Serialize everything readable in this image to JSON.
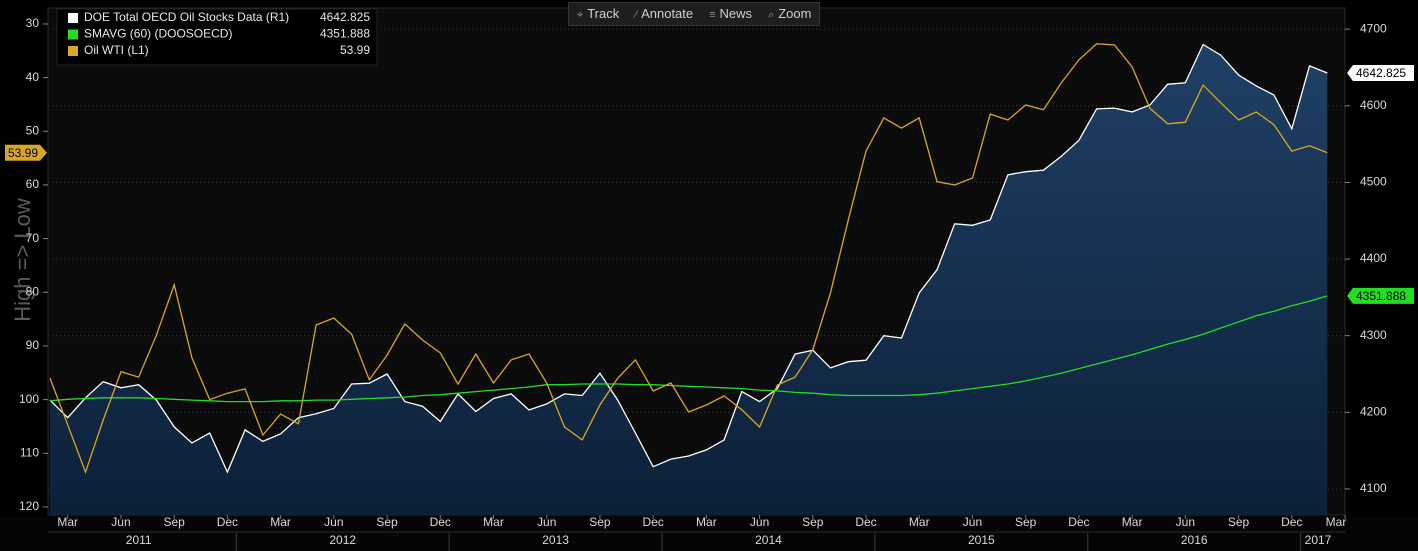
{
  "toolbar": [
    "Track",
    "Annotate",
    "News",
    "Zoom"
  ],
  "chart_data": {
    "type": "line",
    "ylabel": "High => Low",
    "x": [
      "2011-02",
      "2011-03",
      "2011-04",
      "2011-05",
      "2011-06",
      "2011-07",
      "2011-08",
      "2011-09",
      "2011-10",
      "2011-11",
      "2011-12",
      "2012-01",
      "2012-02",
      "2012-03",
      "2012-04",
      "2012-05",
      "2012-06",
      "2012-07",
      "2012-08",
      "2012-09",
      "2012-10",
      "2012-11",
      "2012-12",
      "2013-01",
      "2013-02",
      "2013-03",
      "2013-04",
      "2013-05",
      "2013-06",
      "2013-07",
      "2013-08",
      "2013-09",
      "2013-10",
      "2013-11",
      "2013-12",
      "2014-01",
      "2014-02",
      "2014-03",
      "2014-04",
      "2014-05",
      "2014-06",
      "2014-07",
      "2014-08",
      "2014-09",
      "2014-10",
      "2014-11",
      "2014-12",
      "2015-01",
      "2015-02",
      "2015-03",
      "2015-04",
      "2015-05",
      "2015-06",
      "2015-07",
      "2015-08",
      "2015-09",
      "2015-10",
      "2015-11",
      "2015-12",
      "2016-01",
      "2016-02",
      "2016-03",
      "2016-04",
      "2016-05",
      "2016-06",
      "2016-07",
      "2016-08",
      "2016-09",
      "2016-10",
      "2016-11",
      "2016-12",
      "2017-01",
      "2017-02"
    ],
    "xlim": [
      "2011-02",
      "2017-03"
    ],
    "xticks": [
      {
        "value": "2011-03",
        "label": "Mar"
      },
      {
        "value": "2011-06",
        "label": "Jun"
      },
      {
        "value": "2011-09",
        "label": "Sep"
      },
      {
        "value": "2011-12",
        "label": "Dec"
      },
      {
        "value": "2012-03",
        "label": "Mar"
      },
      {
        "value": "2012-06",
        "label": "Jun"
      },
      {
        "value": "2012-09",
        "label": "Sep"
      },
      {
        "value": "2012-12",
        "label": "Dec"
      },
      {
        "value": "2013-03",
        "label": "Mar"
      },
      {
        "value": "2013-06",
        "label": "Jun"
      },
      {
        "value": "2013-09",
        "label": "Sep"
      },
      {
        "value": "2013-12",
        "label": "Dec"
      },
      {
        "value": "2014-03",
        "label": "Mar"
      },
      {
        "value": "2014-06",
        "label": "Jun"
      },
      {
        "value": "2014-09",
        "label": "Sep"
      },
      {
        "value": "2014-12",
        "label": "Dec"
      },
      {
        "value": "2015-03",
        "label": "Mar"
      },
      {
        "value": "2015-06",
        "label": "Jun"
      },
      {
        "value": "2015-09",
        "label": "Sep"
      },
      {
        "value": "2015-12",
        "label": "Dec"
      },
      {
        "value": "2016-03",
        "label": "Mar"
      },
      {
        "value": "2016-06",
        "label": "Jun"
      },
      {
        "value": "2016-09",
        "label": "Sep"
      },
      {
        "value": "2016-12",
        "label": "Dec"
      },
      {
        "value": "2017-03",
        "label": "Mar"
      }
    ],
    "x_groups": [
      2011,
      2012,
      2013,
      2014,
      2015,
      2016,
      2017
    ],
    "ylim": [
      27.4,
      121.5
    ],
    "y_inverted": true,
    "yticks": [
      30,
      40,
      50,
      60,
      70,
      80,
      90,
      100,
      110,
      120
    ],
    "y2lim": [
      4066,
      4725
    ],
    "y2ticks": [
      4100,
      4200,
      4300,
      4400,
      4500,
      4600,
      4700
    ],
    "grid": true,
    "legend": "top-left",
    "series": [
      {
        "name": "DOE Total OECD Oil Stocks Data (R1)",
        "color": "#ffffff",
        "axis": "y2",
        "area": true,
        "values": [
          4216,
          4193,
          4219,
          4240,
          4232,
          4236,
          4216,
          4181,
          4160,
          4173,
          4122,
          4177,
          4162,
          4172,
          4193,
          4198,
          4205,
          4237,
          4238,
          4250,
          4214,
          4208,
          4188,
          4224,
          4201,
          4218,
          4224,
          4203,
          4211,
          4224,
          4222,
          4251,
          4216,
          4173,
          4129,
          4139,
          4143,
          4151,
          4164,
          4227,
          4214,
          4231,
          4276,
          4281,
          4258,
          4266,
          4268,
          4300,
          4297,
          4356,
          4386,
          4446,
          4444,
          4451,
          4510,
          4514,
          4516,
          4534,
          4555,
          4596,
          4597,
          4592,
          4601,
          4628,
          4630,
          4680,
          4666,
          4640,
          4626,
          4614,
          4570,
          4652,
          4642.825
        ]
      },
      {
        "name": "SMAVG (60) (DOOSOECD)",
        "color": "#22dd22",
        "axis": "y2",
        "values": [
          4215,
          4217,
          4218,
          4219,
          4219,
          4219,
          4218,
          4217,
          4216,
          4215,
          4214,
          4214,
          4214,
          4215,
          4215,
          4216,
          4216,
          4217,
          4218,
          4219,
          4220,
          4222,
          4223,
          4225,
          4227,
          4229,
          4231,
          4233,
          4236,
          4236,
          4237,
          4237,
          4237,
          4236,
          4236,
          4235,
          4234,
          4233,
          4232,
          4231,
          4229,
          4228,
          4226,
          4225,
          4223,
          4222,
          4222,
          4222,
          4222,
          4223,
          4225,
          4228,
          4231,
          4234,
          4237,
          4241,
          4246,
          4251,
          4257,
          4263,
          4269,
          4275,
          4282,
          4289,
          4295,
          4302,
          4310,
          4318,
          4326,
          4332,
          4339,
          4345,
          4351.888
        ]
      },
      {
        "name": "Oil WTI (L1)",
        "color": "#d9a81e",
        "axis": "y",
        "values": [
          96,
          104.7,
          113.5,
          103.8,
          94.8,
          95.8,
          88,
          78.6,
          92.2,
          100,
          98.8,
          98,
          106.6,
          102.7,
          104.5,
          86.1,
          84.8,
          87.8,
          96.3,
          91.7,
          85.9,
          88.9,
          91.3,
          97.1,
          91.5,
          96.9,
          92.6,
          91.5,
          96.9,
          105.1,
          107.5,
          101,
          96,
          92.6,
          98.4,
          96.9,
          102.3,
          101,
          99.3,
          101.9,
          105.1,
          97.3,
          95.8,
          90.7,
          80.1,
          66.5,
          53.7,
          47.5,
          49.4,
          47.5,
          59.4,
          60,
          58.7,
          46.8,
          47.9,
          45.1,
          46,
          41,
          36.7,
          33.7,
          33.9,
          38,
          45.7,
          48.6,
          48.3,
          41.4,
          44.7,
          47.9,
          46.4,
          48.8,
          53.7,
          52.7,
          53.99
        ]
      }
    ]
  }
}
